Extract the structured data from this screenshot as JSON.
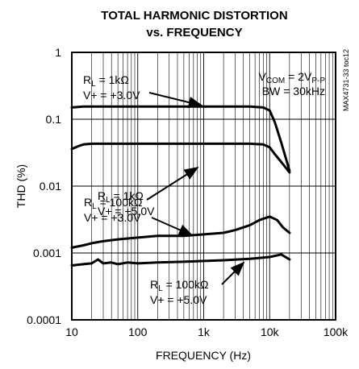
{
  "chart_data": {
    "type": "line",
    "title": "TOTAL HARMONIC DISTORTION",
    "subtitle": "vs. FREQUENCY",
    "xlabel": "FREQUENCY (Hz)",
    "ylabel": "THD (%)",
    "x_scale": "log",
    "y_scale": "log",
    "xlim": [
      10,
      100000
    ],
    "ylim": [
      0.0001,
      1
    ],
    "x_ticks": [
      10,
      100,
      1000,
      10000,
      100000
    ],
    "x_tick_labels": [
      "10",
      "100",
      "1k",
      "10k",
      "100k"
    ],
    "y_ticks": [
      1,
      0.1,
      0.01,
      0.001,
      0.0001
    ],
    "y_tick_labels": [
      "1",
      "0.1",
      "0.01",
      "0.001",
      "0.0001"
    ],
    "grid": true,
    "conditions": [
      "V",
      "COM",
      " = 2V",
      "P-P",
      "BW = 30kHz"
    ],
    "side_code": "MAX4731-33 toc12",
    "series": [
      {
        "label_lines": [
          [
            "R",
            "L",
            " = 1kΩ"
          ],
          [
            "V+ = +3.0V"
          ]
        ],
        "x": [
          10,
          15,
          20,
          30,
          50,
          100,
          200,
          500,
          1000,
          2000,
          5000,
          8000,
          10000,
          12000,
          15000,
          20000
        ],
        "y": [
          0.15,
          0.155,
          0.155,
          0.155,
          0.155,
          0.155,
          0.155,
          0.155,
          0.155,
          0.155,
          0.155,
          0.15,
          0.135,
          0.09,
          0.045,
          0.017
        ]
      },
      {
        "label_lines": [
          [
            "R",
            "L",
            " = 1kΩ"
          ],
          [
            "V+ = +5.0V"
          ]
        ],
        "x": [
          10,
          13,
          15,
          20,
          30,
          50,
          100,
          200,
          500,
          1000,
          2000,
          5000,
          8000,
          10000,
          12000,
          15000,
          20000
        ],
        "y": [
          0.036,
          0.04,
          0.042,
          0.043,
          0.043,
          0.043,
          0.043,
          0.043,
          0.043,
          0.043,
          0.043,
          0.043,
          0.042,
          0.038,
          0.03,
          0.023,
          0.016
        ]
      },
      {
        "label_lines": [
          [
            "R",
            "L",
            " = 100kΩ"
          ],
          [
            "V+ = +3.0V"
          ]
        ],
        "x": [
          10,
          15,
          20,
          30,
          50,
          100,
          200,
          500,
          1000,
          2000,
          3000,
          5000,
          7000,
          10000,
          13000,
          16000,
          20000
        ],
        "y": [
          0.0012,
          0.0013,
          0.0014,
          0.0015,
          0.0016,
          0.0017,
          0.0018,
          0.0018,
          0.0019,
          0.002,
          0.0022,
          0.0026,
          0.0031,
          0.0035,
          0.0031,
          0.0024,
          0.002
        ]
      },
      {
        "label_lines": [
          [
            "R",
            "L",
            " = 100kΩ"
          ],
          [
            "V+ = +5.0V"
          ]
        ],
        "x": [
          10,
          15,
          20,
          25,
          30,
          40,
          50,
          70,
          100,
          200,
          500,
          1000,
          2000,
          5000,
          10000,
          15000,
          20000
        ],
        "y": [
          0.00065,
          0.00068,
          0.0007,
          0.0008,
          0.0007,
          0.00072,
          0.00068,
          0.00072,
          0.0007,
          0.00072,
          0.00074,
          0.00076,
          0.00078,
          0.00082,
          0.00087,
          0.00095,
          0.0008
        ]
      }
    ]
  }
}
